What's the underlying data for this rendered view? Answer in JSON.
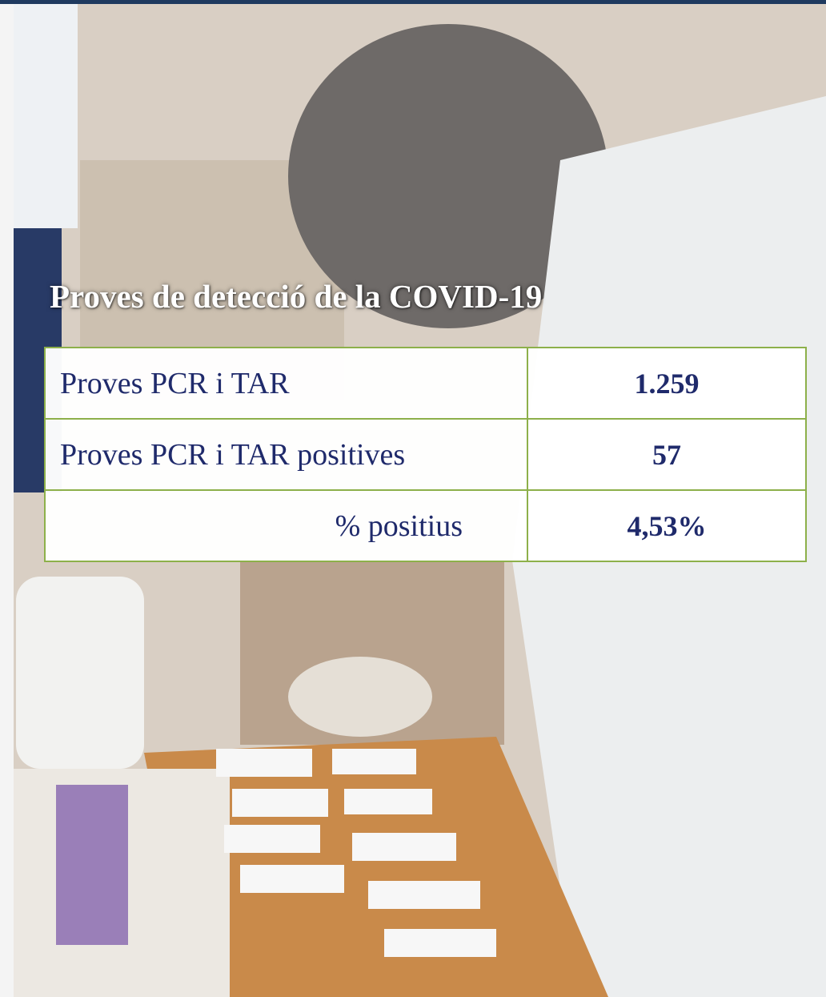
{
  "title": "Proves de detecció de la COVID-19",
  "table": {
    "rows": [
      [
        "Proves PCR i TAR",
        "1.259"
      ],
      [
        "Proves PCR i TAR positives",
        "57"
      ],
      [
        "% positius",
        "4,53%"
      ]
    ]
  }
}
